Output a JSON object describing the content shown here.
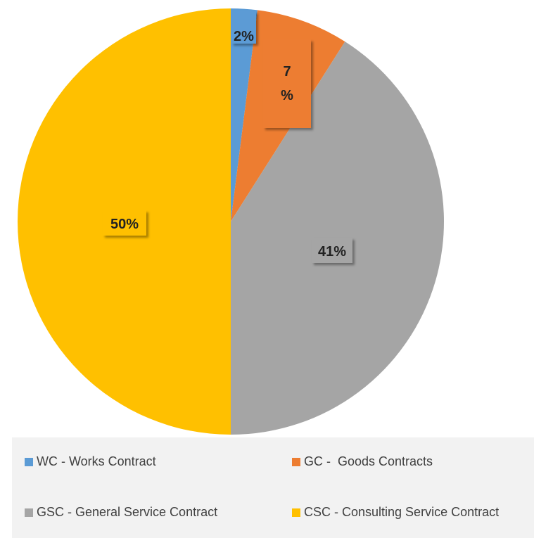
{
  "chart_data": {
    "type": "pie",
    "start": "12 o'clock, clockwise",
    "slices": [
      {
        "label": "WC - Works Contract",
        "value": 2,
        "data_label": "2%",
        "color": "#5b9bd5"
      },
      {
        "label": "GC -  Goods Contracts",
        "value": 7,
        "data_label": "7 %",
        "color": "#ed7d31"
      },
      {
        "label": "GSC - General Service Contract",
        "value": 41,
        "data_label": "41%",
        "color": "#a5a5a5"
      },
      {
        "label": "CSC - Consulting Service Contract",
        "value": 50,
        "data_label": "50%",
        "color": "#ffc000"
      }
    ],
    "legend_position": "bottom",
    "title": ""
  }
}
